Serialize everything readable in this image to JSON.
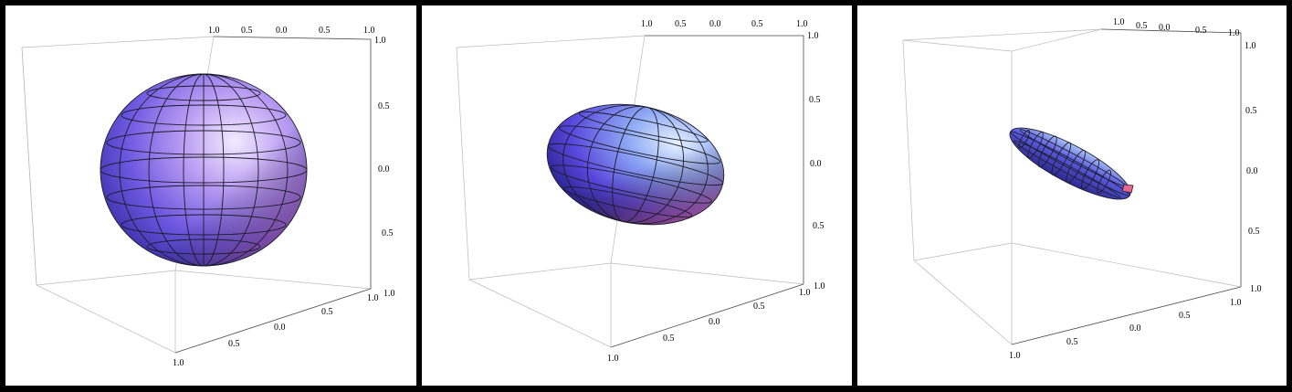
{
  "panels": [
    {
      "id": "p1",
      "shape": "sphere",
      "top_ticks": [
        "1.0",
        "0.5",
        "0.0",
        "0.5",
        "1.0"
      ],
      "right_ticks": [
        "1.0",
        "0.5",
        "0.0",
        "0.5",
        "1.0"
      ],
      "bottom_ticks": [
        "1.0",
        "0.5",
        "0.0",
        "0.5",
        "1.0"
      ]
    },
    {
      "id": "p2",
      "shape": "ellipsoid",
      "top_ticks": [
        "1.0",
        "0.5",
        "0.0",
        "0.5",
        "1.0"
      ],
      "right_ticks": [
        "1.0",
        "0.5",
        "0.0",
        "0.5",
        "1.0"
      ],
      "bottom_ticks": [
        "1.0",
        "0.5",
        "0.0",
        "0.5",
        "1.0"
      ]
    },
    {
      "id": "p3",
      "shape": "elongated-ellipsoid",
      "top_ticks": [
        "1.0",
        "0.5",
        "0.0",
        "0.5",
        "1.0"
      ],
      "right_ticks": [
        "1.0",
        "0.5",
        "0.0",
        "0.5",
        "1.0"
      ],
      "bottom_ticks": [
        "1.0",
        "0.5",
        "0.0",
        "0.5",
        "1.0"
      ]
    }
  ],
  "colors": {
    "frame": "#000000",
    "box": "#b9b9b9",
    "mesh": "#1c1c28",
    "blue": "#4a4ad8",
    "light": "#dce8ff",
    "pink": "#e9648f"
  }
}
